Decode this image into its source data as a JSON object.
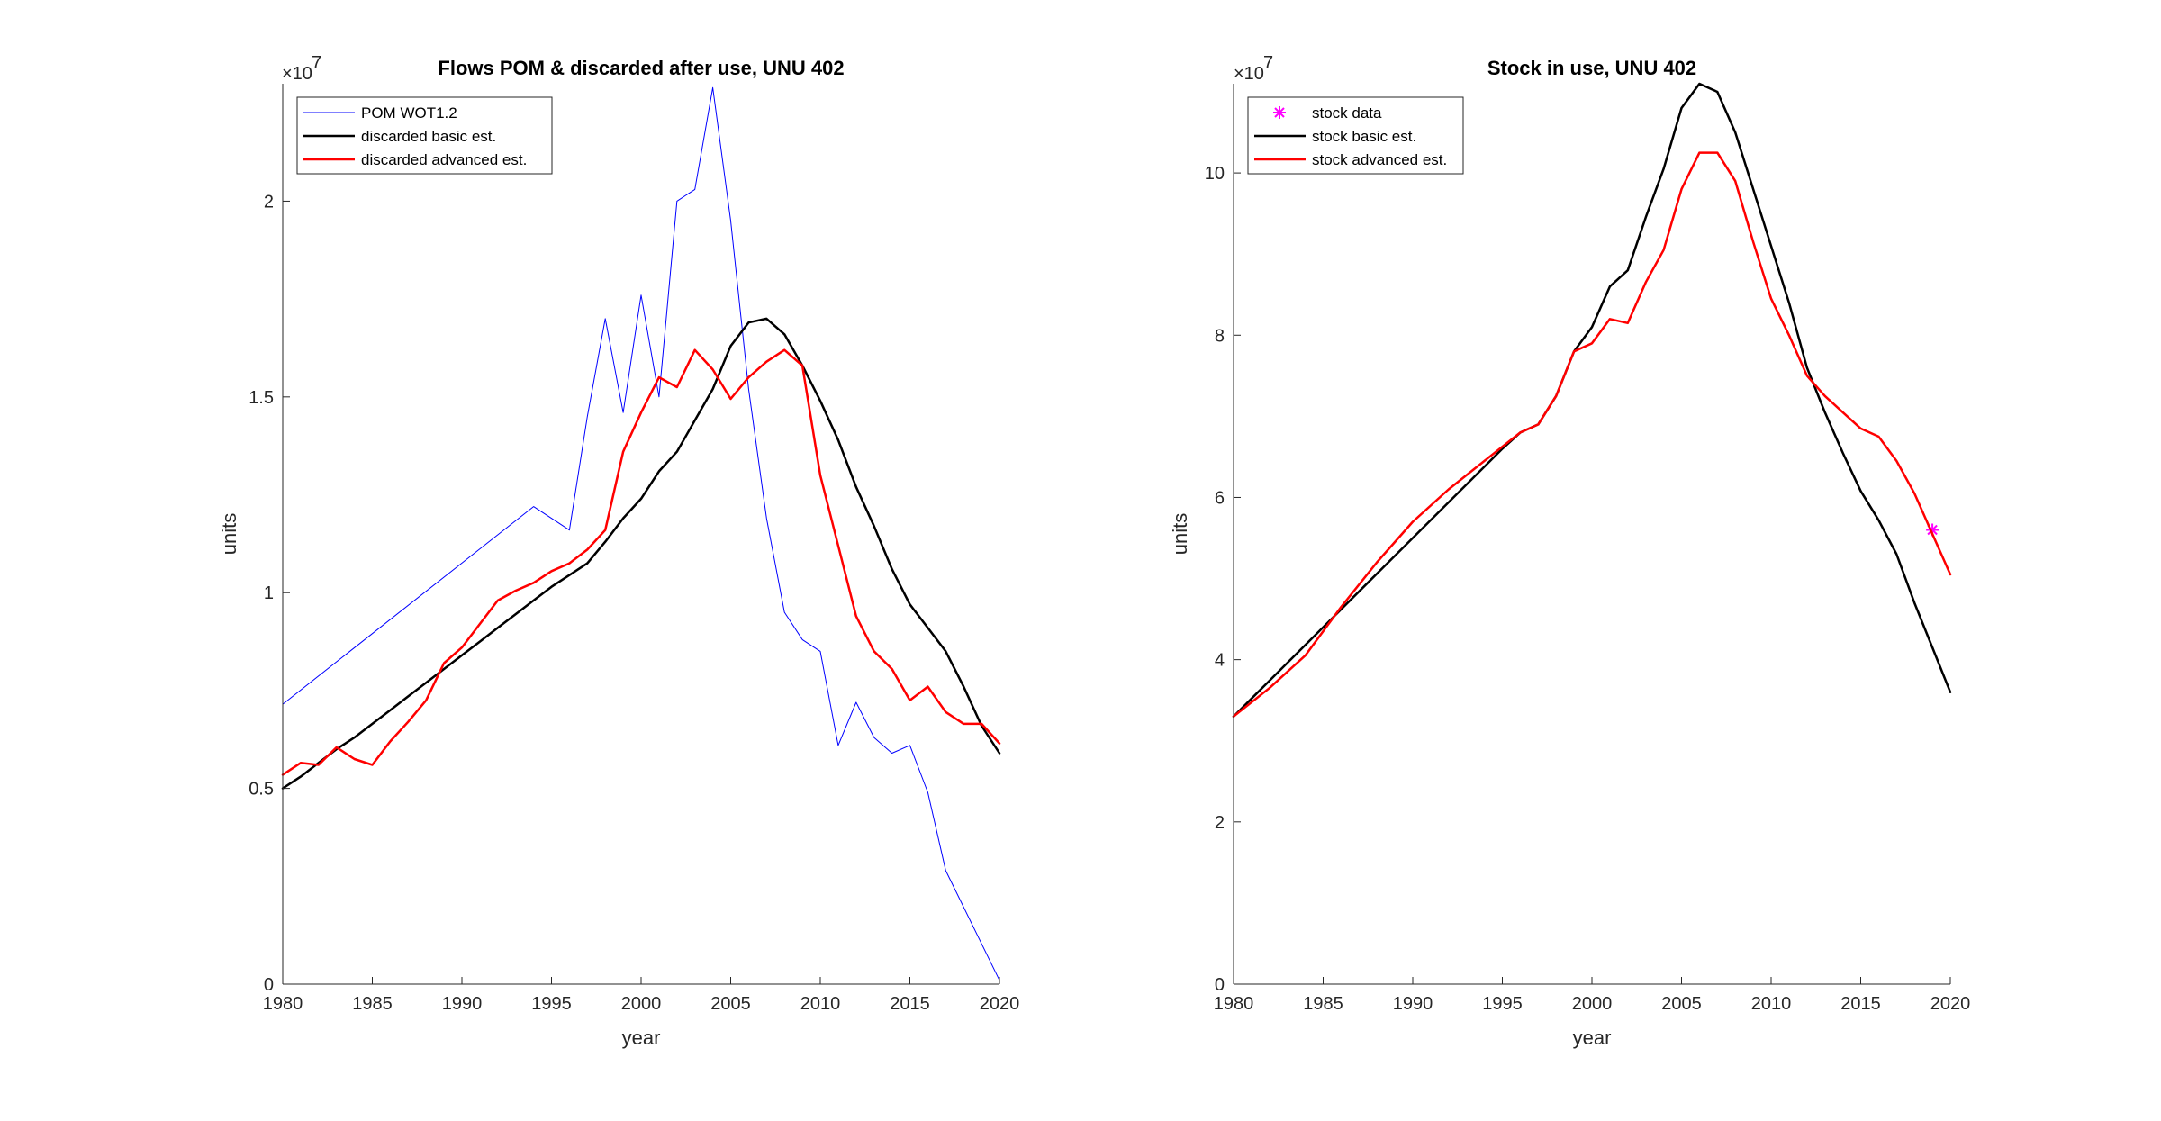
{
  "chart_data": [
    {
      "type": "line",
      "title": "Flows POM & discarded after use, UNU 402",
      "xlabel": "year",
      "ylabel": "units",
      "xlim": [
        1980,
        2020
      ],
      "ylim": [
        0,
        23000000
      ],
      "y_exponent_label": "×10",
      "y_exponent_sup": "7",
      "y_scale": 10000000,
      "xticks": [
        1980,
        1985,
        1990,
        1995,
        2000,
        2005,
        2010,
        2015,
        2020
      ],
      "xtick_labels": [
        "1980",
        "1985",
        "1990",
        "1995",
        "2000",
        "2005",
        "2010",
        "2015",
        "2020"
      ],
      "yticks": [
        0,
        5000000,
        10000000,
        15000000,
        20000000
      ],
      "ytick_labels": [
        "0",
        "0.5",
        "1",
        "1.5",
        "2"
      ],
      "legend_position": "top-left",
      "grid": false,
      "series": [
        {
          "name": "POM WOT1.2",
          "color": "#0000ff",
          "width": 1,
          "x": [
            1980,
            1994,
            1996,
            1997,
            1998,
            1999,
            2000,
            2001,
            2002,
            2003,
            2004,
            2005,
            2006,
            2007,
            2008,
            2009,
            2010,
            2011,
            2012,
            2013,
            2014,
            2015,
            2016,
            2017,
            2020
          ],
          "y": [
            7150000,
            12200000,
            11600000,
            14500000,
            17000000,
            14600000,
            17600000,
            15000000,
            20000000,
            20300000,
            22900000,
            19500000,
            15200000,
            11900000,
            9500000,
            8800000,
            8500000,
            6100000,
            7200000,
            6300000,
            5900000,
            6100000,
            4900000,
            2900000,
            100000
          ]
        },
        {
          "name": "discarded basic est.",
          "color": "#000000",
          "width": 2.5,
          "x": [
            1980,
            1981,
            1982,
            1983,
            1984,
            1985,
            1986,
            1987,
            1988,
            1989,
            1990,
            1991,
            1992,
            1993,
            1994,
            1995,
            1996,
            1997,
            1998,
            1999,
            2000,
            2001,
            2002,
            2003,
            2004,
            2005,
            2006,
            2007,
            2008,
            2009,
            2010,
            2011,
            2012,
            2013,
            2014,
            2015,
            2016,
            2017,
            2018,
            2019,
            2020
          ],
          "y": [
            5000000,
            5300000,
            5650000,
            6000000,
            6300000,
            6650000,
            7000000,
            7350000,
            7700000,
            8050000,
            8400000,
            8750000,
            9100000,
            9450000,
            9800000,
            10150000,
            10450000,
            10750000,
            11300000,
            11900000,
            12400000,
            13100000,
            13600000,
            14400000,
            15200000,
            16300000,
            16900000,
            17000000,
            16600000,
            15800000,
            14900000,
            13900000,
            12700000,
            11700000,
            10600000,
            9700000,
            9100000,
            8500000,
            7600000,
            6600000,
            5900000
          ]
        },
        {
          "name": "discarded advanced est.",
          "color": "#ff0000",
          "width": 2.5,
          "x": [
            1980,
            1981,
            1982,
            1983,
            1984,
            1985,
            1986,
            1987,
            1988,
            1989,
            1990,
            1991,
            1992,
            1993,
            1994,
            1995,
            1996,
            1997,
            1998,
            1999,
            2000,
            2001,
            2002,
            2003,
            2004,
            2005,
            2006,
            2007,
            2008,
            2009,
            2010,
            2011,
            2012,
            2013,
            2014,
            2015,
            2016,
            2017,
            2018,
            2019,
            2020
          ],
          "y": [
            5350000,
            5650000,
            5600000,
            6050000,
            5750000,
            5600000,
            6200000,
            6700000,
            7250000,
            8200000,
            8600000,
            9200000,
            9800000,
            10050000,
            10250000,
            10550000,
            10750000,
            11100000,
            11600000,
            13600000,
            14600000,
            15500000,
            15250000,
            16200000,
            15700000,
            14950000,
            15500000,
            15900000,
            16200000,
            15800000,
            13000000,
            11200000,
            9400000,
            8500000,
            8050000,
            7250000,
            7600000,
            6950000,
            6650000,
            6650000,
            6150000
          ]
        }
      ]
    },
    {
      "type": "line",
      "title": "Stock in use, UNU 402",
      "xlabel": "year",
      "ylabel": "units",
      "xlim": [
        1980,
        2020
      ],
      "ylim": [
        0,
        111000000
      ],
      "y_exponent_label": "×10",
      "y_exponent_sup": "7",
      "y_scale": 10000000,
      "xticks": [
        1980,
        1985,
        1990,
        1995,
        2000,
        2005,
        2010,
        2015,
        2020
      ],
      "xtick_labels": [
        "1980",
        "1985",
        "1990",
        "1995",
        "2000",
        "2005",
        "2010",
        "2015",
        "2020"
      ],
      "yticks": [
        0,
        20000000,
        40000000,
        60000000,
        80000000,
        100000000
      ],
      "ytick_labels": [
        "0",
        "2",
        "4",
        "6",
        "8",
        "10"
      ],
      "legend_position": "top-left",
      "grid": false,
      "series": [
        {
          "name": "stock data",
          "color": "#ff00ff",
          "marker": "asterisk",
          "x": [
            2019
          ],
          "y": [
            56000000
          ]
        },
        {
          "name": "stock basic est.",
          "color": "#000000",
          "width": 2.5,
          "x": [
            1980,
            1985,
            1990,
            1995,
            1996,
            1997,
            1998,
            1999,
            2000,
            2001,
            2002,
            2003,
            2004,
            2005,
            2006,
            2007,
            2008,
            2009,
            2010,
            2011,
            2012,
            2013,
            2014,
            2015,
            2016,
            2017,
            2018,
            2019,
            2020
          ],
          "y": [
            33000000,
            44000000,
            55000000,
            66000000,
            68000000,
            69000000,
            72500000,
            78000000,
            81000000,
            86000000,
            88000000,
            94500000,
            100500000,
            108000000,
            111000000,
            110000000,
            105000000,
            98000000,
            91000000,
            84000000,
            76000000,
            70500000,
            65500000,
            60800000,
            57200000,
            53000000,
            47000000,
            41500000,
            36000000
          ]
        },
        {
          "name": "stock advanced est.",
          "color": "#ff0000",
          "width": 2.5,
          "x": [
            1980,
            1982,
            1984,
            1986,
            1988,
            1990,
            1992,
            1994,
            1996,
            1997,
            1998,
            1999,
            2000,
            2001,
            2002,
            2003,
            2004,
            2005,
            2006,
            2007,
            2008,
            2009,
            2010,
            2011,
            2012,
            2013,
            2014,
            2015,
            2016,
            2017,
            2018,
            2019,
            2020
          ],
          "y": [
            33000000,
            36500000,
            40500000,
            46500000,
            52000000,
            57000000,
            61000000,
            64500000,
            68000000,
            69000000,
            72500000,
            78000000,
            79000000,
            82000000,
            81500000,
            86500000,
            90500000,
            98000000,
            102500000,
            102500000,
            99000000,
            91500000,
            84500000,
            80000000,
            75000000,
            72500000,
            70500000,
            68500000,
            67500000,
            64500000,
            60500000,
            55500000,
            50500000
          ]
        }
      ]
    }
  ]
}
